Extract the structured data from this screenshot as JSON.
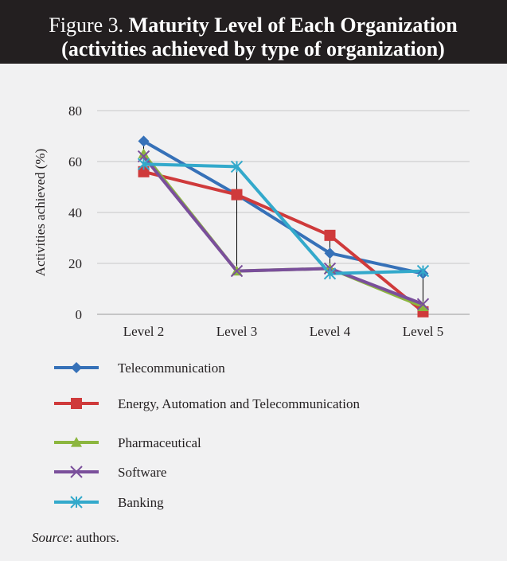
{
  "chart_data": {
    "type": "line",
    "figure_label": "Figure 3.",
    "title": "Maturity Level of Each Organization",
    "subtitle": "(activities achieved by type of organization)",
    "y_label": "Activities achieved (%)",
    "categories": [
      "Level 2",
      "Level 3",
      "Level 4",
      "Level 5"
    ],
    "ylim": [
      0,
      80
    ],
    "yticks": [
      0,
      20,
      40,
      60,
      80
    ],
    "grid": true,
    "high_low_lines": true,
    "series": [
      {
        "name": "Telecommunication",
        "color": "#3671b8",
        "marker": "diamond",
        "values": [
          68,
          47,
          24,
          16
        ]
      },
      {
        "name": "Energy, Automation and Telecommunication",
        "color": "#cf3a3b",
        "marker": "square",
        "values": [
          56,
          47,
          31,
          1
        ]
      },
      {
        "name": "Pharmaceutical",
        "color": "#8cb63f",
        "marker": "triangle",
        "values": [
          63,
          17,
          18,
          3
        ]
      },
      {
        "name": "Software",
        "color": "#7a4f9b",
        "marker": "x",
        "values": [
          62,
          17,
          18,
          4
        ]
      },
      {
        "name": "Banking",
        "color": "#33a9cb",
        "marker": "asterisk",
        "values": [
          59,
          58,
          16,
          17
        ]
      }
    ],
    "source_label": "Source",
    "source_text": ": authors."
  }
}
